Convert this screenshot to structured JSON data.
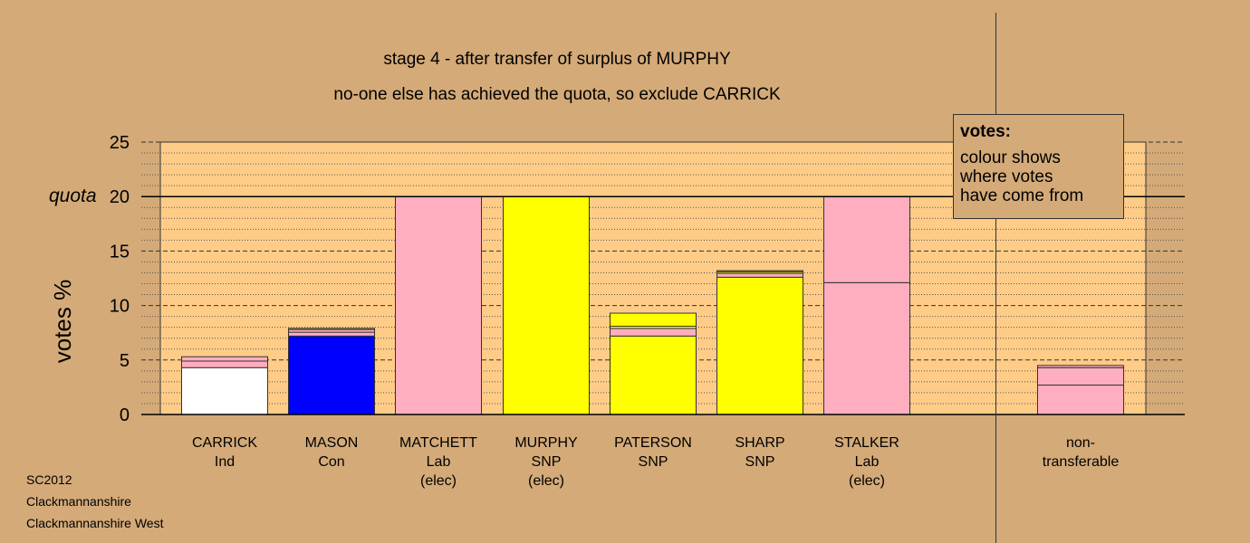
{
  "titles": {
    "line1": "stage 4 - after transfer of surplus of MURPHY",
    "line2": "no-one else has achieved the quota, so exclude CARRICK"
  },
  "meta": {
    "election": "SC2012",
    "council": "Clackmannanshire",
    "ward": "Clackmannanshire West"
  },
  "legend": {
    "title": "votes:",
    "text": [
      "colour shows",
      "where votes",
      "have come from"
    ]
  },
  "chart_data": {
    "type": "bar",
    "stacked": true,
    "ylabel": "votes %",
    "ylim": [
      0,
      25
    ],
    "yticks": [
      0,
      5,
      10,
      15,
      20,
      25
    ],
    "quota": 20,
    "quota_label": "quota",
    "grid": true,
    "categories": [
      {
        "name": "CARRICK",
        "sub": [
          "Ind"
        ]
      },
      {
        "name": "MASON",
        "sub": [
          "Con"
        ]
      },
      {
        "name": "MATCHETT",
        "sub": [
          "Lab",
          "(elec)"
        ]
      },
      {
        "name": "MURPHY",
        "sub": [
          "SNP",
          "(elec)"
        ]
      },
      {
        "name": "PATERSON",
        "sub": [
          "SNP"
        ]
      },
      {
        "name": "SHARP",
        "sub": [
          "SNP"
        ]
      },
      {
        "name": "STALKER",
        "sub": [
          "Lab",
          "(elec)"
        ]
      },
      {
        "name": "non-",
        "sub": [
          "transferable"
        ]
      }
    ],
    "colors": {
      "Ind": "#ffffff",
      "Con": "#0000ff",
      "Lab": "#ffaec0",
      "SNP": "#ffff00",
      "background": "#d4aa78",
      "plot": "#ffcc88"
    },
    "bars": [
      {
        "segments": [
          {
            "from": "Ind",
            "value": 4.3
          },
          {
            "from": "Lab",
            "value": 0.6
          },
          {
            "from": "Lab",
            "value": 0.4
          }
        ]
      },
      {
        "segments": [
          {
            "from": "Con",
            "value": 7.2
          },
          {
            "from": "Lab",
            "value": 0.35
          },
          {
            "from": "Lab",
            "value": 0.25
          },
          {
            "from": "SNP",
            "value": 0.1
          }
        ]
      },
      {
        "segments": [
          {
            "from": "Lab",
            "value": 20.0
          }
        ]
      },
      {
        "segments": [
          {
            "from": "SNP",
            "value": 20.0
          }
        ]
      },
      {
        "segments": [
          {
            "from": "SNP",
            "value": 7.2
          },
          {
            "from": "Lab",
            "value": 0.7
          },
          {
            "from": "SNP",
            "value": 0.2
          },
          {
            "from": "SNP",
            "value": 1.2
          }
        ]
      },
      {
        "segments": [
          {
            "from": "SNP",
            "value": 12.6
          },
          {
            "from": "Lab",
            "value": 0.35
          },
          {
            "from": "SNP",
            "value": 0.15
          },
          {
            "from": "SNP",
            "value": 0.1
          }
        ]
      },
      {
        "segments": [
          {
            "from": "Lab",
            "value": 12.1
          },
          {
            "from": "Lab",
            "value": 7.9
          }
        ]
      },
      {
        "segments": [
          {
            "from": "Lab",
            "value": 2.7
          },
          {
            "from": "Lab",
            "value": 1.6
          },
          {
            "from": "Lab",
            "value": 0.2
          }
        ]
      }
    ]
  }
}
